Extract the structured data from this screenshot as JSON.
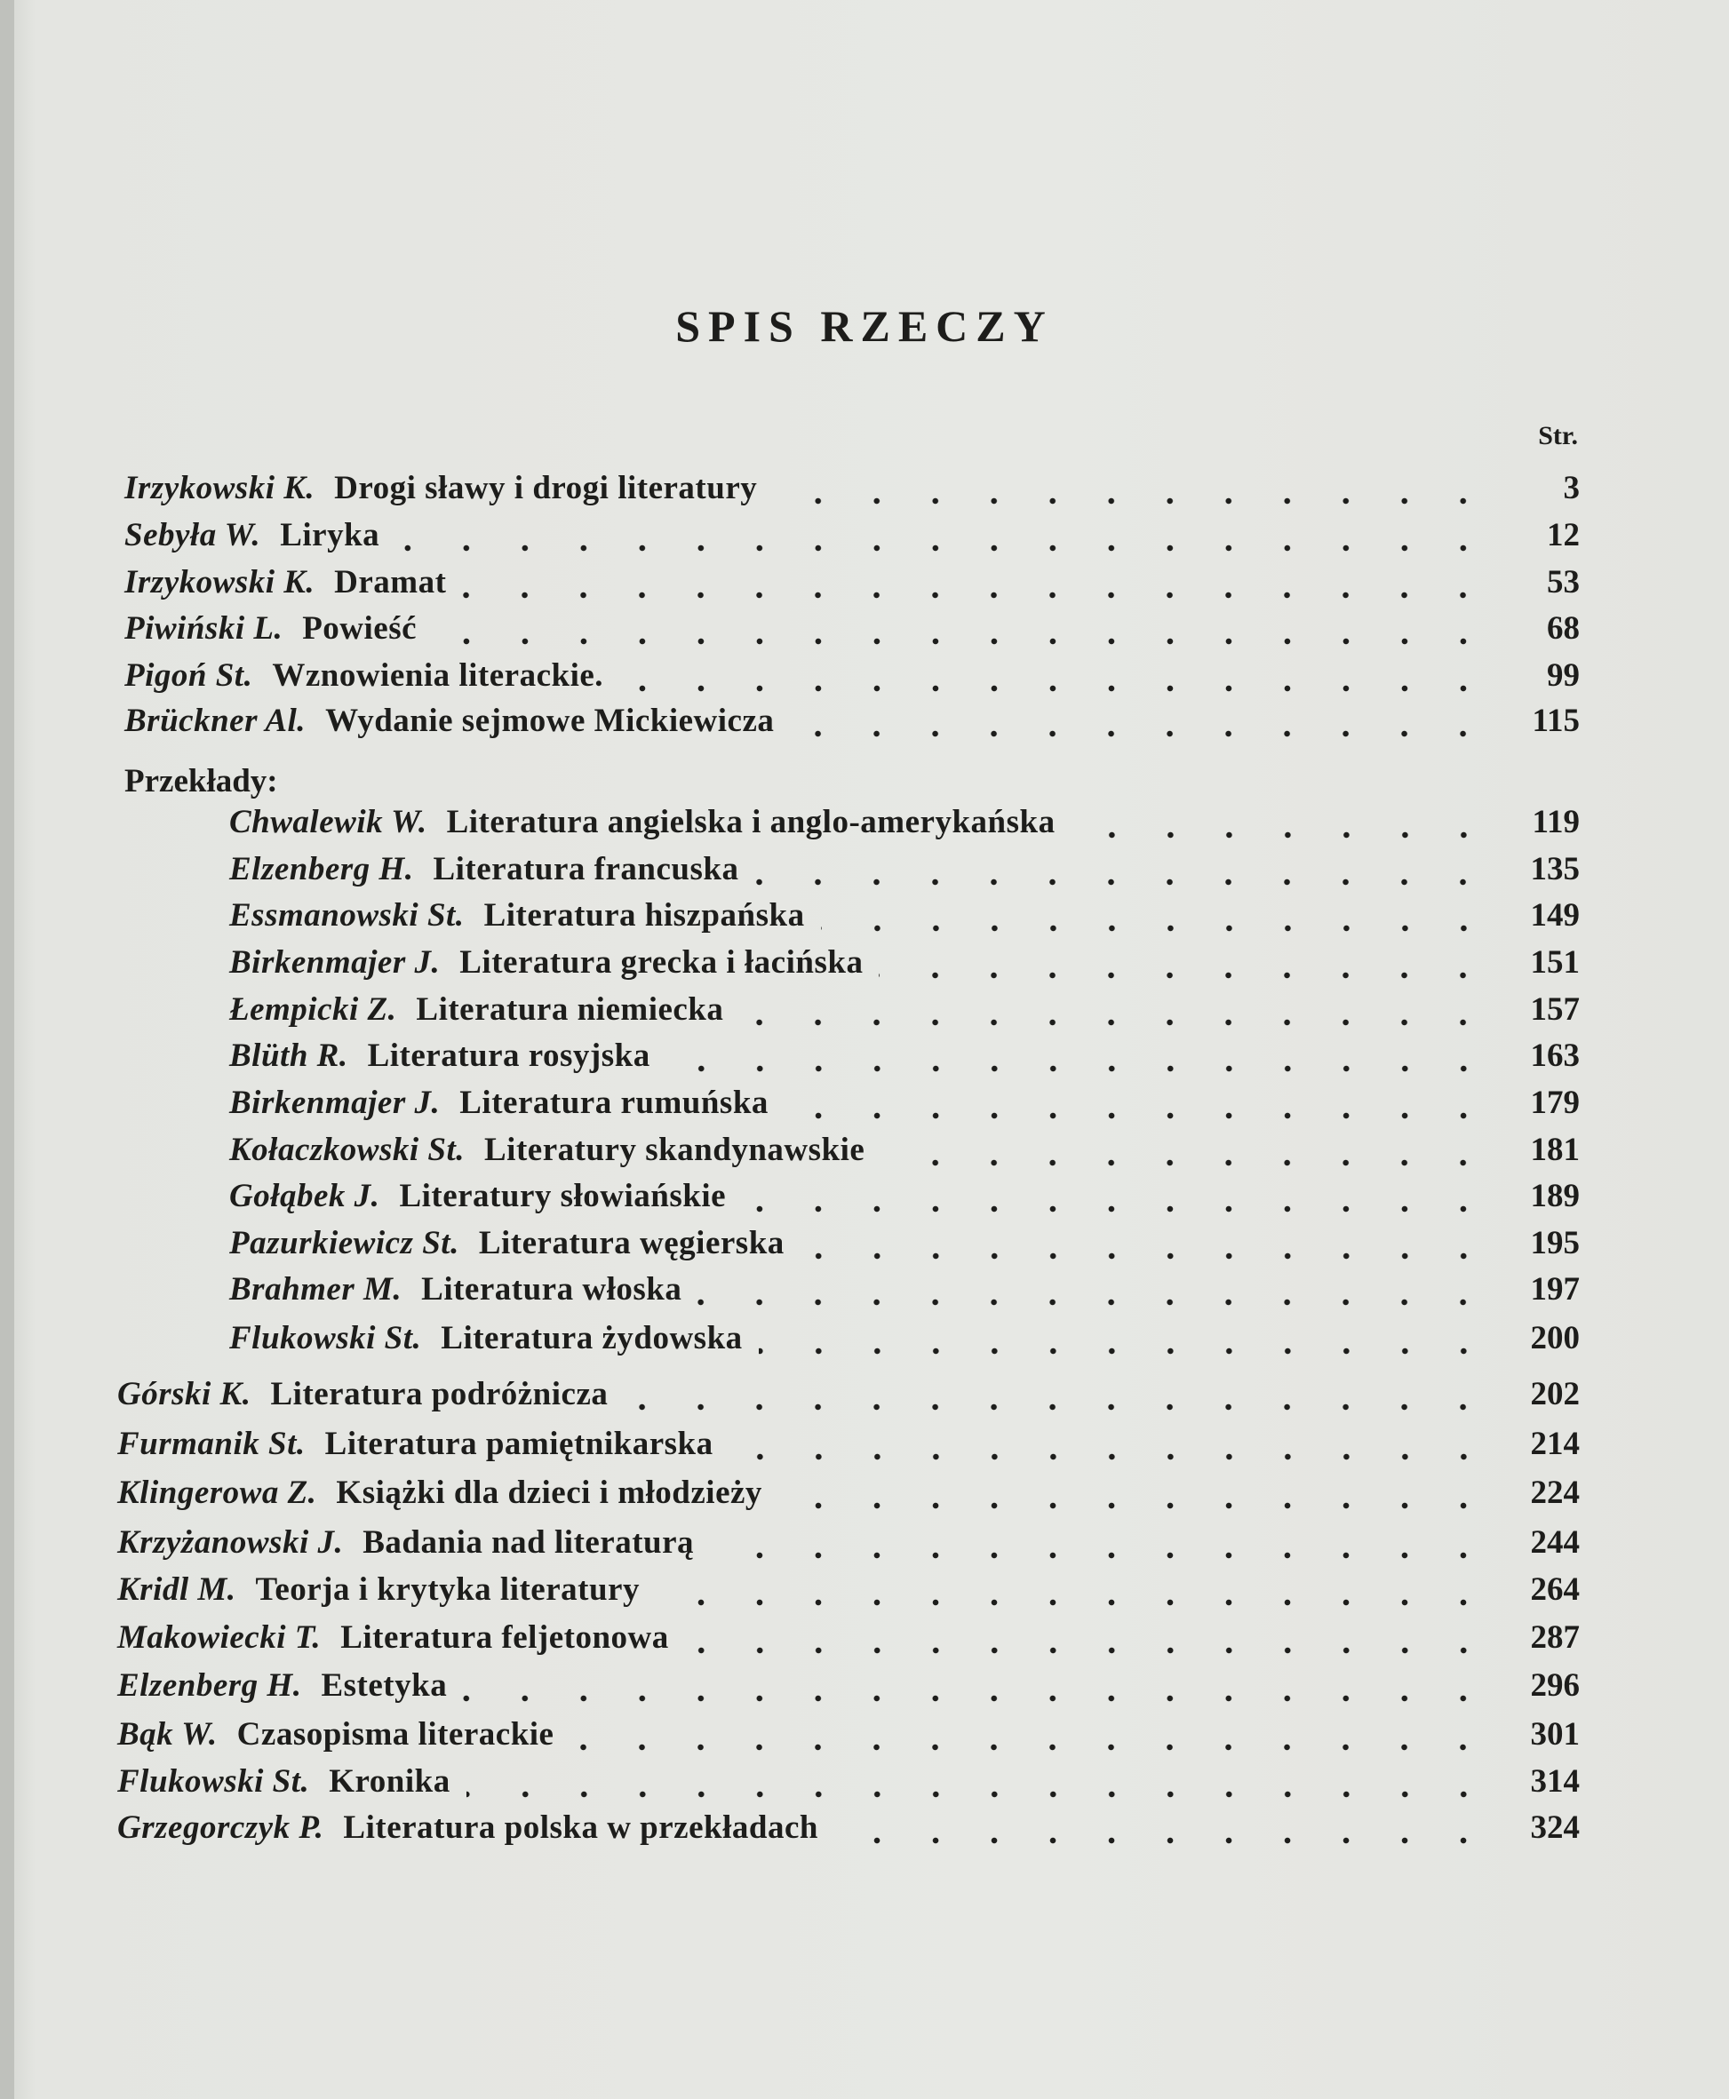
{
  "title": "SPIS RZECZY",
  "page_column_label": "Str.",
  "entries_top": [
    {
      "author": "Irzykowski K.",
      "title": "Drogi sławy i drogi literatury",
      "page": "3"
    },
    {
      "author": "Sebyła W.",
      "title": "Liryka",
      "page": "12"
    },
    {
      "author": "Irzykowski K.",
      "title": "Dramat",
      "page": "53"
    },
    {
      "author": "Piwiński L.",
      "title": "Powieść",
      "page": "68"
    },
    {
      "author": "Pigoń St.",
      "title": "Wznowienia literackie.",
      "page": "99"
    },
    {
      "author": "Brückner Al.",
      "title": "Wydanie sejmowe Mickiewicza",
      "page": "115"
    }
  ],
  "translations": {
    "heading": "Przekłady:",
    "entries": [
      {
        "author": "Chwalewik W.",
        "title": "Literatura angielska i anglo-amerykańska",
        "page": "119"
      },
      {
        "author": "Elzenberg H.",
        "title": "Literatura francuska",
        "page": "135"
      },
      {
        "author": "Essmanowski St.",
        "title": "Literatura hiszpańska",
        "page": "149"
      },
      {
        "author": "Birkenmajer J.",
        "title": "Literatura grecka i łacińska",
        "page": "151"
      },
      {
        "author": "Łempicki Z.",
        "title": "Literatura niemiecka",
        "page": "157"
      },
      {
        "author": "Blüth R.",
        "title": "Literatura rosyjska",
        "page": "163"
      },
      {
        "author": "Birkenmajer J.",
        "title": "Literatura rumuńska",
        "page": "179"
      },
      {
        "author": "Kołaczkowski St.",
        "title": "Literatury skandynawskie",
        "page": "181"
      },
      {
        "author": "Gołąbek J.",
        "title": "Literatury słowiańskie",
        "page": "189"
      },
      {
        "author": "Pazurkiewicz St.",
        "title": "Literatura węgierska",
        "page": "195"
      },
      {
        "author": "Brahmer M.",
        "title": "Literatura włoska",
        "page": "197"
      },
      {
        "author": "Flukowski St.",
        "title": "Literatura żydowska",
        "page": "200"
      }
    ]
  },
  "entries_bottom": [
    {
      "author": "Górski K.",
      "title": "Literatura podróżnicza",
      "page": "202"
    },
    {
      "author": "Furmanik St.",
      "title": "Literatura pamiętnikarska",
      "page": "214"
    },
    {
      "author": "Klingerowa Z.",
      "title": "Książki dla dzieci i młodzieży",
      "page": "224"
    },
    {
      "author": "Krzyżanowski J.",
      "title": "Badania nad literaturą",
      "page": "244"
    },
    {
      "author": "Kridl M.",
      "title": "Teorja i krytyka literatury",
      "page": "264"
    },
    {
      "author": "Makowiecki T.",
      "title": "Literatura feljetonowa",
      "page": "287"
    },
    {
      "author": "Elzenberg H.",
      "title": "Estetyka",
      "page": "296"
    },
    {
      "author": "Bąk W.",
      "title": "Czasopisma literackie",
      "page": "301"
    },
    {
      "author": "Flukowski St.",
      "title": "Kronika",
      "page": "314"
    },
    {
      "author": "Grzegorczyk P.",
      "title": "Literatura polska w przekładach",
      "page": "324"
    }
  ]
}
